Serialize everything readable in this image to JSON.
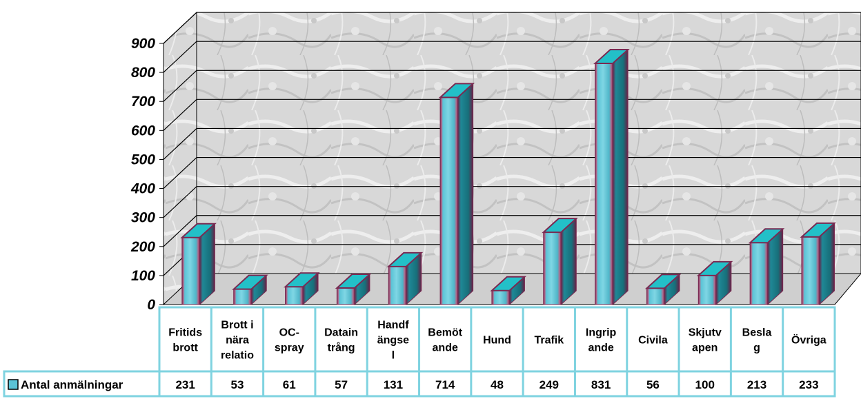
{
  "chart_data": {
    "type": "bar",
    "title": "",
    "xlabel": "",
    "ylabel": "",
    "ylim": [
      0,
      900
    ],
    "yticks": [
      "0",
      "100",
      "200",
      "300",
      "400",
      "500",
      "600",
      "700",
      "800",
      "900"
    ],
    "grid": true,
    "style": "3d-cylinder",
    "legend_placement": "left of data table",
    "categories": [
      [
        "Fritids",
        "brott"
      ],
      [
        "Brott i",
        "nära",
        "relatio"
      ],
      [
        "OC-",
        "spray"
      ],
      [
        "Datain",
        "trång"
      ],
      [
        "Handf",
        "ängse",
        "l"
      ],
      [
        "Bemöt",
        "ande"
      ],
      [
        "Hund"
      ],
      [
        "Trafik"
      ],
      [
        "Ingrip",
        "ande"
      ],
      [
        "Civila"
      ],
      [
        "Skjutv",
        "apen"
      ],
      [
        "Besla",
        "g"
      ],
      [
        "Övriga"
      ]
    ],
    "series": [
      {
        "name": "Antal anmälningar",
        "values": [
          231,
          53,
          61,
          57,
          131,
          714,
          48,
          249,
          831,
          56,
          100,
          213,
          233
        ],
        "value_labels": [
          "231",
          "53",
          "61",
          "57",
          "131",
          "714",
          "48",
          "249",
          "831",
          "56",
          "100",
          "213",
          "233"
        ]
      }
    ],
    "colors": {
      "bar_front": "#5bc3d6",
      "bar_side": "#1f8896",
      "bar_top": "#23c0c8",
      "bar_edge": "#7a2a52",
      "table_border": "#7fd3e0",
      "wall_base": "#dcdcdc",
      "grid": "#000000"
    }
  }
}
